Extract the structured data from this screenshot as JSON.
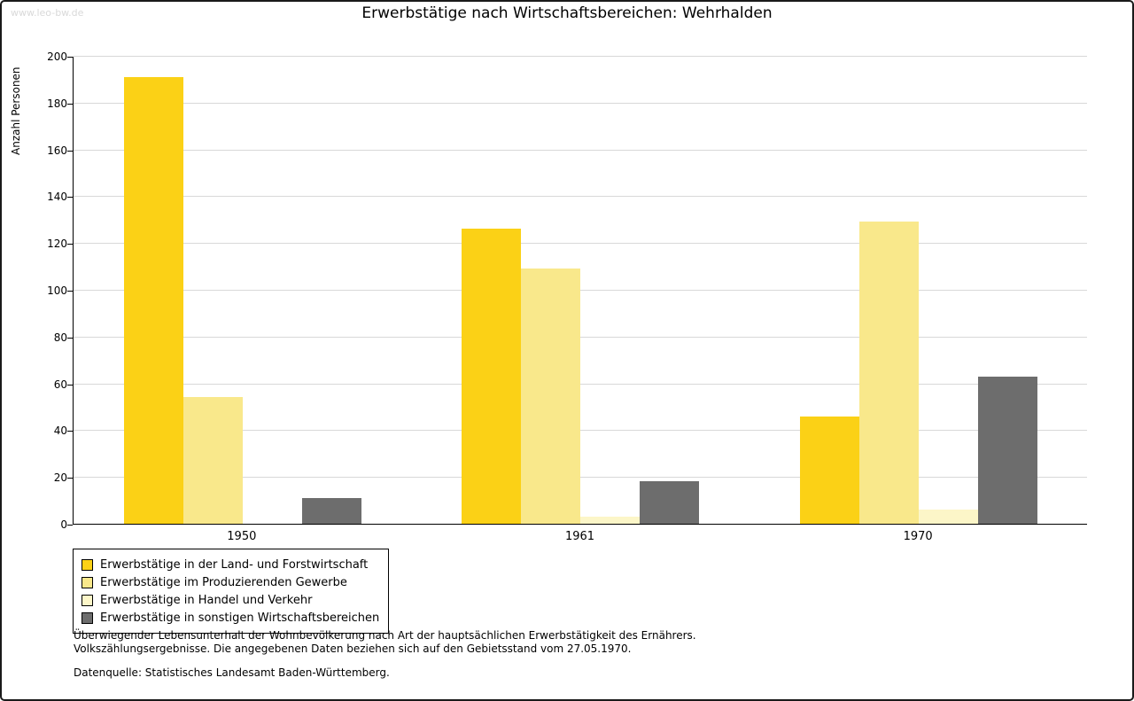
{
  "page": {
    "watermark": "www.leo-bw.de",
    "title": "Erwerbstätige nach Wirtschaftsbereichen: Wehrhalden",
    "footnote_line1": "Überwiegender Lebensunterhalt der Wohnbevölkerung nach Art der hauptsächlichen Erwerbstätigkeit des Ernährers.",
    "footnote_line2": "Volkszählungsergebnisse. Die angegebenen Daten beziehen sich auf den Gebietsstand vom 27.05.1970.",
    "source": "Datenquelle: Statistisches Landesamt Baden-Württemberg."
  },
  "chart_data": {
    "type": "bar",
    "title": "Erwerbstätige nach Wirtschaftsbereichen: Wehrhalden",
    "xlabel": "",
    "ylabel": "Anzahl Personen",
    "ylim": [
      0,
      200
    ],
    "ytick_step": 20,
    "grid": true,
    "legend_position": "bottom-left",
    "categories": [
      "1950",
      "1961",
      "1970"
    ],
    "series": [
      {
        "name": "Erwerbstätige in der Land- und Forstwirtschaft",
        "color": "#FBD116",
        "values": [
          191,
          126,
          46
        ]
      },
      {
        "name": "Erwerbstätige im Produzierenden Gewerbe",
        "color": "#F9E88B",
        "values": [
          54,
          109,
          129
        ]
      },
      {
        "name": "Erwerbstätige in Handel und Verkehr",
        "color": "#FCF6C8",
        "values": [
          0,
          3,
          6
        ]
      },
      {
        "name": "Erwerbstätige in sonstigen Wirtschaftsbereichen",
        "color": "#6D6D6D",
        "values": [
          11,
          18,
          63
        ]
      }
    ]
  }
}
